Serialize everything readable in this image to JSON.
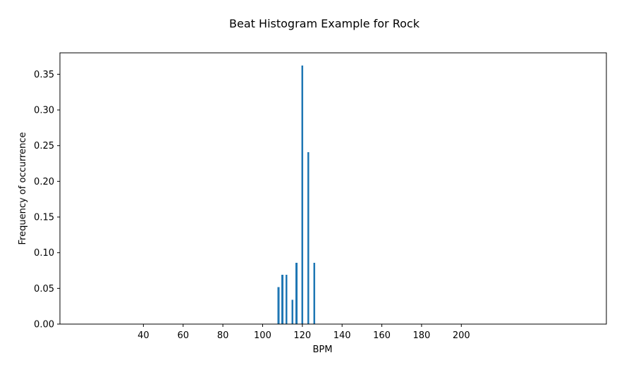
{
  "chart_data": {
    "type": "bar",
    "title": "Beat Histogram Example for Rock",
    "xlabel": "BPM",
    "ylabel": "Frequency of occurrence",
    "x": [
      108,
      110,
      112,
      115,
      117,
      120,
      123,
      126
    ],
    "values": [
      0.052,
      0.069,
      0.069,
      0.034,
      0.086,
      0.362,
      0.241,
      0.086
    ],
    "bar_width_bpm": 1.0,
    "bar_color": "#1f77b4",
    "xlim": [
      -2,
      273
    ],
    "ylim": [
      0,
      0.38
    ],
    "xticks": [
      40,
      60,
      80,
      100,
      120,
      140,
      160,
      180,
      200
    ],
    "xtick_labels": [
      "40",
      "60",
      "80",
      "100",
      "120",
      "140",
      "160",
      "180",
      "200"
    ],
    "yticks": [
      0.0,
      0.05,
      0.1,
      0.15,
      0.2,
      0.25,
      0.3,
      0.35
    ],
    "ytick_labels": [
      "0.00",
      "0.05",
      "0.10",
      "0.15",
      "0.20",
      "0.25",
      "0.30",
      "0.35"
    ],
    "grid": false,
    "legend": "none"
  }
}
